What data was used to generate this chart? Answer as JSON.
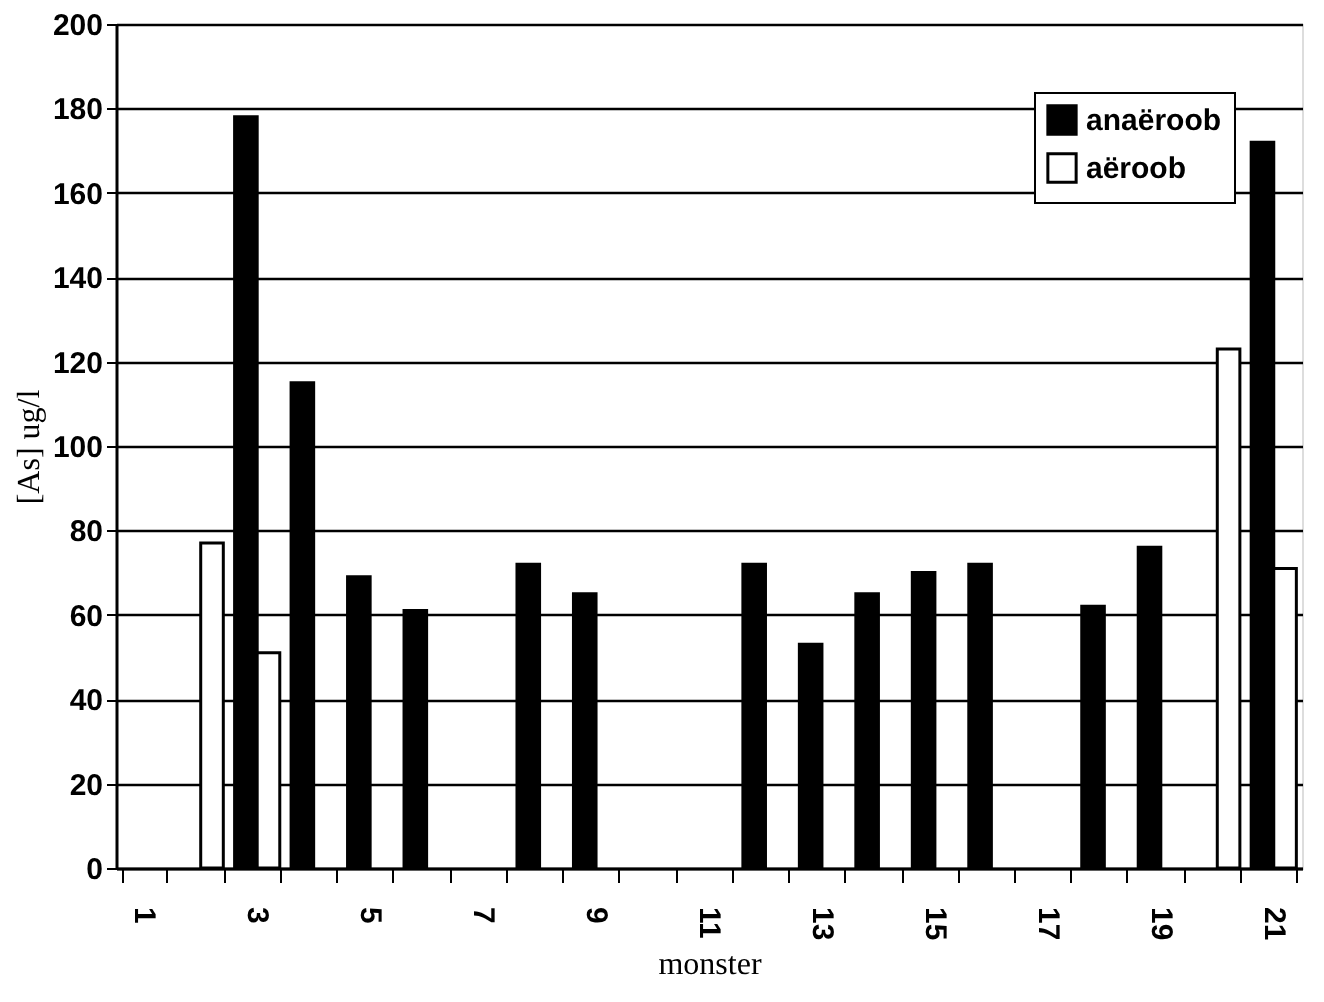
{
  "chart_data": {
    "type": "bar",
    "xlabel": "monster",
    "ylabel": "[As] ug/l",
    "categories": [
      "1",
      null,
      "3",
      null,
      "5",
      null,
      "7",
      null,
      "9",
      null,
      "11",
      null,
      "13",
      null,
      "15",
      null,
      "17",
      null,
      "19",
      null,
      "21"
    ],
    "series": [
      {
        "name": "anaëroob",
        "color": "#000000",
        "values": [
          null,
          null,
          178,
          115,
          69,
          61,
          null,
          72,
          65,
          null,
          null,
          72,
          53,
          65,
          70,
          72,
          null,
          62,
          76,
          null,
          172
        ]
      },
      {
        "name": "aëroob",
        "color": "#ffffff",
        "values": [
          null,
          77,
          51,
          null,
          null,
          null,
          null,
          null,
          null,
          null,
          null,
          null,
          null,
          null,
          null,
          null,
          null,
          null,
          null,
          123,
          71
        ]
      }
    ],
    "ylim": [
      0,
      200
    ],
    "yticks": [
      0,
      20,
      40,
      60,
      80,
      100,
      120,
      140,
      160,
      180,
      200
    ],
    "grid": "y",
    "legend": "top right"
  }
}
